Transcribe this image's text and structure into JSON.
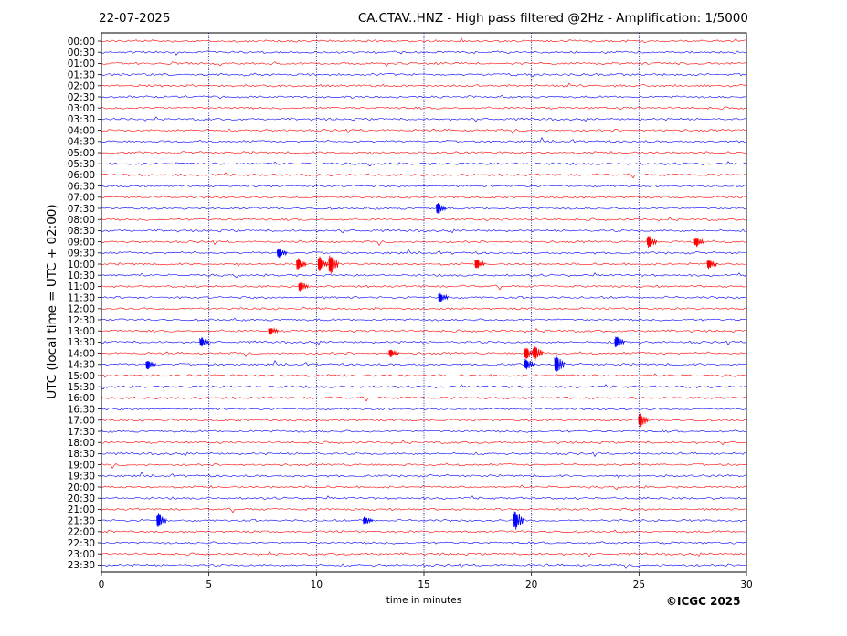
{
  "header": {
    "date": "22-07-2025",
    "title": "CA.CTAV..HNZ - High pass filtered @2Hz - Amplification: 1/5000"
  },
  "footer": {
    "copyright": "©ICGC 2025"
  },
  "chart_data": {
    "type": "line",
    "title": "CA.CTAV..HNZ - High pass filtered @2Hz - Amplification: 1/5000",
    "xlabel": "time in minutes",
    "ylabel": "UTC (local time = UTC + 02:00)",
    "xlim": [
      0,
      30
    ],
    "xticks": [
      0,
      5,
      10,
      15,
      20,
      25,
      30
    ],
    "vertical_gridlines_at": [
      5,
      10,
      15,
      20,
      25
    ],
    "trace_colors": [
      "#ff0000",
      "#0000ff"
    ],
    "rows": [
      "00:00",
      "00:30",
      "01:00",
      "01:30",
      "02:00",
      "02:30",
      "03:00",
      "03:30",
      "04:00",
      "04:30",
      "05:00",
      "05:30",
      "06:00",
      "06:30",
      "07:00",
      "07:30",
      "08:00",
      "08:30",
      "09:00",
      "09:30",
      "10:00",
      "10:30",
      "11:00",
      "11:30",
      "12:00",
      "12:30",
      "13:00",
      "13:30",
      "14:00",
      "14:30",
      "15:00",
      "15:30",
      "16:00",
      "16:30",
      "17:00",
      "17:30",
      "18:00",
      "18:30",
      "19:00",
      "19:30",
      "20:00",
      "20:30",
      "21:00",
      "21:30",
      "22:00",
      "22:30",
      "23:00",
      "23:30"
    ],
    "events": [
      {
        "row": "07:30",
        "minute": 15.7,
        "amplitude": 0.6
      },
      {
        "row": "09:00",
        "minute": 25.5,
        "amplitude": 0.6
      },
      {
        "row": "09:00",
        "minute": 27.7,
        "amplitude": 0.5
      },
      {
        "row": "09:30",
        "minute": 8.3,
        "amplitude": 0.5
      },
      {
        "row": "10:00",
        "minute": 9.2,
        "amplitude": 0.6
      },
      {
        "row": "10:00",
        "minute": 10.2,
        "amplitude": 0.7
      },
      {
        "row": "10:00",
        "minute": 10.7,
        "amplitude": 1.0
      },
      {
        "row": "10:00",
        "minute": 17.5,
        "amplitude": 0.5
      },
      {
        "row": "10:00",
        "minute": 28.3,
        "amplitude": 0.5
      },
      {
        "row": "11:00",
        "minute": 9.3,
        "amplitude": 0.5
      },
      {
        "row": "11:30",
        "minute": 15.8,
        "amplitude": 0.5
      },
      {
        "row": "13:00",
        "minute": 7.9,
        "amplitude": 0.4
      },
      {
        "row": "13:30",
        "minute": 24.0,
        "amplitude": 0.6
      },
      {
        "row": "13:30",
        "minute": 4.7,
        "amplitude": 0.5
      },
      {
        "row": "14:00",
        "minute": 13.5,
        "amplitude": 0.4
      },
      {
        "row": "14:00",
        "minute": 19.8,
        "amplitude": 0.6
      },
      {
        "row": "14:00",
        "minute": 20.2,
        "amplitude": 0.8
      },
      {
        "row": "14:30",
        "minute": 2.2,
        "amplitude": 0.5
      },
      {
        "row": "14:30",
        "minute": 21.2,
        "amplitude": 0.9
      },
      {
        "row": "14:30",
        "minute": 19.8,
        "amplitude": 0.6
      },
      {
        "row": "17:00",
        "minute": 25.1,
        "amplitude": 0.7
      },
      {
        "row": "21:30",
        "minute": 2.7,
        "amplitude": 0.7
      },
      {
        "row": "21:30",
        "minute": 12.3,
        "amplitude": 0.4
      },
      {
        "row": "21:30",
        "minute": 19.3,
        "amplitude": 1.0
      }
    ]
  }
}
